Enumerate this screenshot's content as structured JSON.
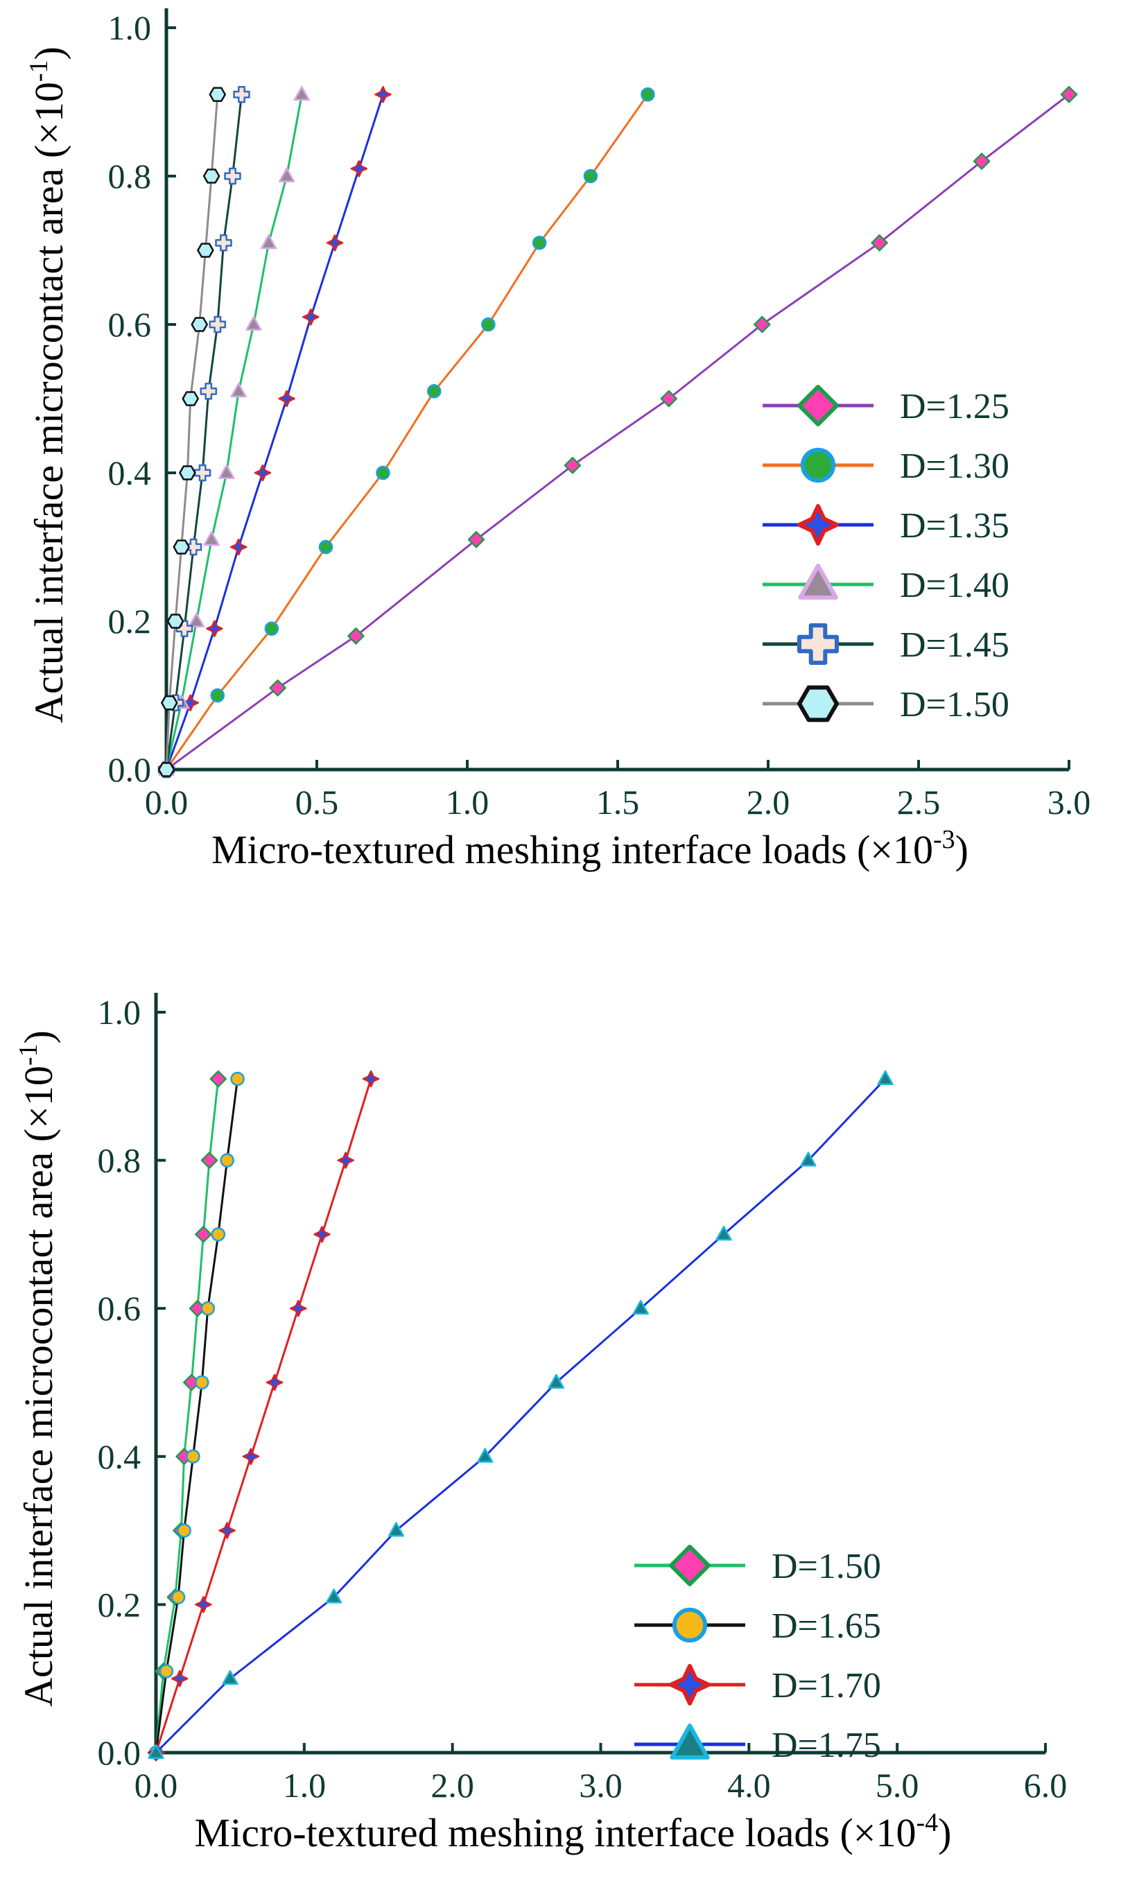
{
  "chart_data": [
    {
      "type": "line",
      "ylabel": "Actual interface microcontact area",
      "ylabel_unit": "(×10",
      "ylabel_exp": "-1",
      "ylabel_close": ")",
      "xlabel": "Micro-textured meshing interface loads",
      "xlabel_unit": "(×10",
      "xlabel_exp": "-3",
      "xlabel_close": ")",
      "xlim": [
        0,
        3.0
      ],
      "ylim": [
        0,
        1.0
      ],
      "xticks": [
        "0.0",
        "0.5",
        "1.0",
        "1.5",
        "2.0",
        "2.5",
        "3.0"
      ],
      "yticks": [
        "0.0",
        "0.2",
        "0.4",
        "0.6",
        "0.8",
        "1.0"
      ],
      "legend_position": "lower-right",
      "series": [
        {
          "name": "D=1.25",
          "marker": "diamond",
          "line_color": "#8e3fb5",
          "marker_fill": "#ff3fb2",
          "marker_edge": "#1a9e4a",
          "x": [
            0,
            0.37,
            0.63,
            1.03,
            1.35,
            1.67,
            1.98,
            2.37,
            2.71,
            3.0
          ],
          "y": [
            0,
            0.11,
            0.18,
            0.31,
            0.41,
            0.5,
            0.6,
            0.71,
            0.82,
            0.91
          ]
        },
        {
          "name": "D=1.30",
          "marker": "circle",
          "line_color": "#f0701e",
          "marker_fill": "#2eaa3a",
          "marker_edge": "#1aa0e0",
          "x": [
            0,
            0.17,
            0.35,
            0.53,
            0.72,
            0.89,
            1.07,
            1.24,
            1.41,
            1.6
          ],
          "y": [
            0,
            0.1,
            0.19,
            0.3,
            0.4,
            0.51,
            0.6,
            0.71,
            0.8,
            0.91
          ]
        },
        {
          "name": "D=1.35",
          "marker": "star4",
          "line_color": "#1a30e0",
          "marker_fill": "#2a50e6",
          "marker_edge": "#e02020",
          "x": [
            0,
            0.08,
            0.16,
            0.24,
            0.32,
            0.4,
            0.48,
            0.56,
            0.64,
            0.72
          ],
          "y": [
            0,
            0.09,
            0.19,
            0.3,
            0.4,
            0.5,
            0.61,
            0.71,
            0.81,
            0.91
          ]
        },
        {
          "name": "D=1.40",
          "marker": "triangle",
          "line_color": "#1fbf6a",
          "marker_fill": "#9a8a98",
          "marker_edge": "#d9a8e6",
          "x": [
            0,
            0.05,
            0.1,
            0.15,
            0.2,
            0.24,
            0.29,
            0.34,
            0.4,
            0.45
          ],
          "y": [
            0,
            0.09,
            0.2,
            0.31,
            0.4,
            0.51,
            0.6,
            0.71,
            0.8,
            0.91
          ]
        },
        {
          "name": "D=1.45",
          "marker": "cross",
          "line_color": "#13463c",
          "marker_fill": "#f8e4d8",
          "marker_edge": "#2f6bc4",
          "x": [
            0,
            0.03,
            0.06,
            0.09,
            0.12,
            0.14,
            0.17,
            0.19,
            0.22,
            0.25
          ],
          "y": [
            0,
            0.09,
            0.19,
            0.3,
            0.4,
            0.51,
            0.6,
            0.71,
            0.8,
            0.91
          ]
        },
        {
          "name": "D=1.50",
          "marker": "hexagon",
          "line_color": "#8c8c8c",
          "marker_fill": "#b8f0f8",
          "marker_edge": "#111111",
          "x": [
            0,
            0.01,
            0.03,
            0.05,
            0.07,
            0.08,
            0.11,
            0.13,
            0.15,
            0.17
          ],
          "y": [
            0,
            0.09,
            0.2,
            0.3,
            0.4,
            0.5,
            0.6,
            0.7,
            0.8,
            0.91
          ]
        }
      ]
    },
    {
      "type": "line",
      "ylabel": "Actual interface microcontact area",
      "ylabel_unit": "(×10",
      "ylabel_exp": "-1",
      "ylabel_close": ")",
      "xlabel": "Micro-textured meshing interface loads",
      "xlabel_unit": "(×10",
      "xlabel_exp": "-4",
      "xlabel_close": ")",
      "xlim": [
        0,
        6.0
      ],
      "ylim": [
        0,
        1.0
      ],
      "xticks": [
        "0.0",
        "1.0",
        "2.0",
        "3.0",
        "4.0",
        "5.0",
        "6.0"
      ],
      "yticks": [
        "0.0",
        "0.2",
        "0.4",
        "0.6",
        "0.8",
        "1.0"
      ],
      "legend_position": "lower-right",
      "series": [
        {
          "name": "D=1.50",
          "marker": "diamond",
          "line_color": "#1fbf6a",
          "marker_fill": "#ff3fb2",
          "marker_edge": "#1a9e4a",
          "x": [
            0,
            0.05,
            0.13,
            0.17,
            0.19,
            0.24,
            0.28,
            0.32,
            0.36,
            0.42
          ],
          "y": [
            0,
            0.11,
            0.21,
            0.3,
            0.4,
            0.5,
            0.6,
            0.7,
            0.8,
            0.91
          ]
        },
        {
          "name": "D=1.65",
          "marker": "circle",
          "line_color": "#111111",
          "marker_fill": "#f5b818",
          "marker_edge": "#1aa0e0",
          "x": [
            0,
            0.07,
            0.15,
            0.19,
            0.25,
            0.31,
            0.35,
            0.42,
            0.48,
            0.55
          ],
          "y": [
            0,
            0.11,
            0.21,
            0.3,
            0.4,
            0.5,
            0.6,
            0.7,
            0.8,
            0.91
          ]
        },
        {
          "name": "D=1.70",
          "marker": "star4",
          "line_color": "#e02020",
          "marker_fill": "#2a50e6",
          "marker_edge": "#e02020",
          "x": [
            0,
            0.16,
            0.32,
            0.48,
            0.64,
            0.8,
            0.96,
            1.12,
            1.28,
            1.45
          ],
          "y": [
            0,
            0.1,
            0.2,
            0.3,
            0.4,
            0.5,
            0.6,
            0.7,
            0.8,
            0.91
          ]
        },
        {
          "name": "D=1.75",
          "marker": "triangle",
          "line_color": "#1a30e0",
          "marker_fill": "#1a7f86",
          "marker_edge": "#18b8e0",
          "x": [
            0,
            0.5,
            1.2,
            1.62,
            2.22,
            2.7,
            3.27,
            3.83,
            4.4,
            4.92
          ],
          "y": [
            0,
            0.1,
            0.21,
            0.3,
            0.4,
            0.5,
            0.6,
            0.7,
            0.8,
            0.91
          ]
        }
      ]
    }
  ]
}
